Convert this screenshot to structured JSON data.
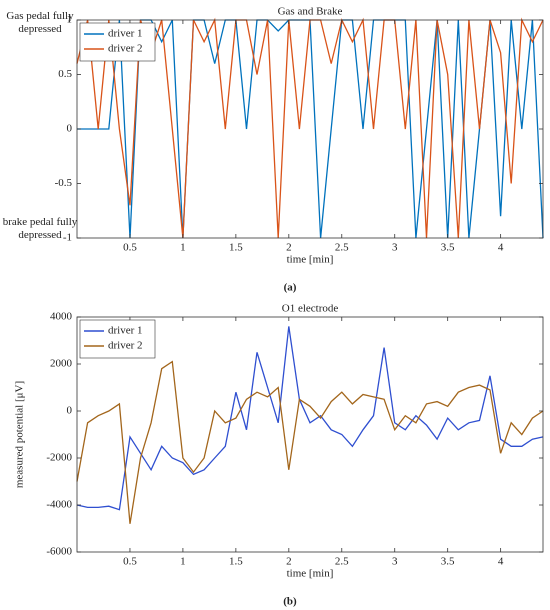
{
  "chart_data": [
    {
      "type": "line",
      "title": "Gas and Brake",
      "xlabel": "time [min]",
      "caption": "(a)",
      "annotations": [
        "Gas pedal fully depressed",
        "brake pedal fully depressed"
      ],
      "x": [
        0,
        0.1,
        0.2,
        0.3,
        0.4,
        0.5,
        0.6,
        0.7,
        0.8,
        0.9,
        1,
        1.1,
        1.2,
        1.3,
        1.4,
        1.5,
        1.6,
        1.7,
        1.8,
        1.9,
        2,
        2.1,
        2.2,
        2.3,
        2.4,
        2.5,
        2.6,
        2.7,
        2.8,
        2.9,
        3,
        3.1,
        3.2,
        3.3,
        3.4,
        3.5,
        3.6,
        3.7,
        3.8,
        3.9,
        4,
        4.1,
        4.2,
        4.3,
        4.4
      ],
      "series": [
        {
          "name": "driver 1",
          "color": "#0072bd",
          "values": [
            0,
            0,
            0,
            0,
            1,
            -1,
            1,
            1,
            0.8,
            1,
            -1,
            1,
            1,
            0.6,
            1,
            1,
            0,
            1,
            1,
            0.9,
            1,
            1,
            1,
            -1,
            0,
            1,
            1,
            0,
            1,
            1,
            1,
            1,
            -1,
            0,
            1,
            -1,
            1,
            -1,
            0,
            1,
            -0.8,
            1,
            0,
            1,
            -1
          ]
        },
        {
          "name": "driver 2",
          "color": "#d95319",
          "values": [
            0.6,
            1,
            0,
            1,
            0,
            -0.7,
            1,
            0.7,
            1,
            0,
            -1,
            1,
            0.8,
            1,
            0,
            1,
            1,
            0.5,
            1,
            -1,
            1,
            0,
            1,
            1,
            0.6,
            1,
            0.8,
            1,
            0,
            1,
            1,
            0,
            1,
            -1,
            1,
            0.5,
            -1,
            1,
            0,
            1,
            0.7,
            -0.5,
            1,
            0.8,
            1
          ]
        }
      ],
      "xlim": [
        0,
        4.4
      ],
      "xticks": [
        0.5,
        1,
        1.5,
        2,
        2.5,
        3,
        3.5,
        4
      ],
      "ylim": [
        -1,
        1
      ],
      "yticks": [
        -1,
        -0.5,
        0,
        0.5,
        1
      ],
      "legend": "upper left"
    },
    {
      "type": "line",
      "title": "O1 electrode",
      "xlabel": "time [min]",
      "ylabel": "measured potential [μV]",
      "caption": "(b)",
      "x": [
        0,
        0.1,
        0.2,
        0.3,
        0.4,
        0.5,
        0.6,
        0.7,
        0.8,
        0.9,
        1,
        1.1,
        1.2,
        1.3,
        1.4,
        1.5,
        1.6,
        1.7,
        1.8,
        1.9,
        2,
        2.1,
        2.2,
        2.3,
        2.4,
        2.5,
        2.6,
        2.7,
        2.8,
        2.9,
        3,
        3.1,
        3.2,
        3.3,
        3.4,
        3.5,
        3.6,
        3.7,
        3.8,
        3.9,
        4,
        4.1,
        4.2,
        4.3,
        4.4
      ],
      "series": [
        {
          "name": "driver 1",
          "color": "#2f4fd0",
          "values": [
            -4000,
            -4100,
            -4100,
            -4050,
            -4200,
            -1100,
            -1800,
            -2500,
            -1500,
            -2000,
            -2200,
            -2700,
            -2500,
            -2000,
            -1500,
            800,
            -800,
            2500,
            1000,
            -500,
            3600,
            500,
            -500,
            -200,
            -800,
            -1000,
            -1500,
            -800,
            -200,
            2700,
            -500,
            -800,
            -200,
            -600,
            -1200,
            -300,
            -800,
            -500,
            -400,
            1500,
            -1200,
            -1500,
            -1500,
            -1200,
            -1100
          ]
        },
        {
          "name": "driver 2",
          "color": "#a3661c",
          "values": [
            -3000,
            -500,
            -200,
            0,
            300,
            -4800,
            -2000,
            -500,
            1800,
            2100,
            -2000,
            -2600,
            -2000,
            0,
            -500,
            -300,
            500,
            800,
            600,
            1000,
            -2500,
            500,
            200,
            -300,
            400,
            800,
            300,
            700,
            600,
            500,
            -800,
            -200,
            -500,
            300,
            400,
            200,
            800,
            1000,
            1100,
            900,
            -1800,
            -500,
            -1000,
            -300,
            0
          ]
        }
      ],
      "xlim": [
        0,
        4.4
      ],
      "xticks": [
        0.5,
        1,
        1.5,
        2,
        2.5,
        3,
        3.5,
        4
      ],
      "ylim": [
        -6000,
        4000
      ],
      "yticks": [
        -6000,
        -4000,
        -2000,
        0,
        2000,
        4000
      ],
      "legend": "upper left"
    }
  ]
}
